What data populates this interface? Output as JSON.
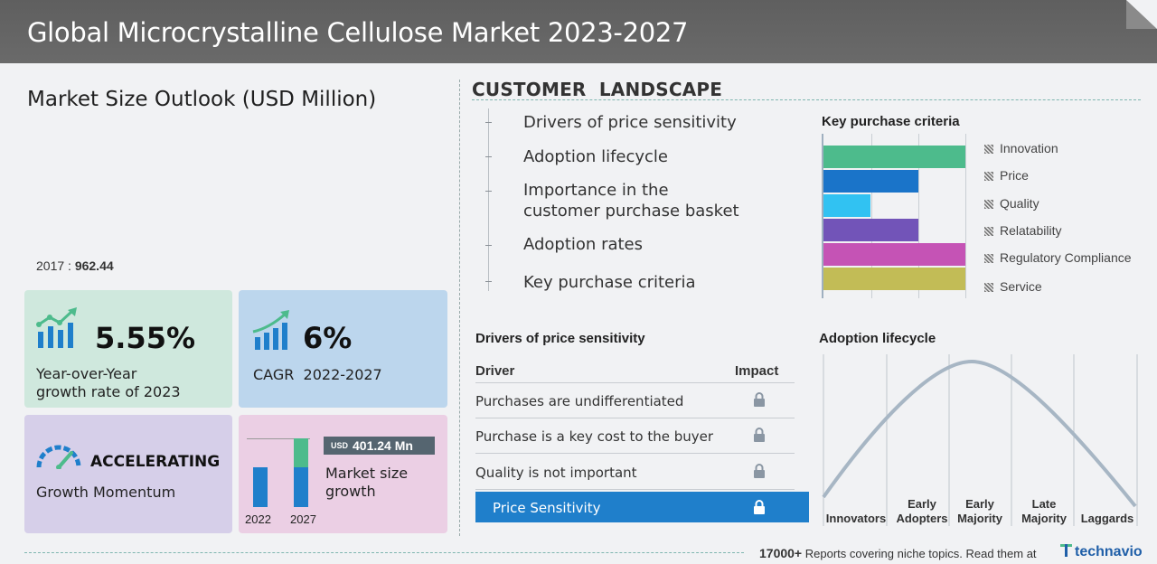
{
  "header": {
    "title": "Global Microcrystalline Cellulose Market 2023-2027"
  },
  "outlook": {
    "title": "Market Size Outlook (USD Million)",
    "base_year": "2017",
    "base_value": "962.44"
  },
  "cards": {
    "yoy": {
      "value": "5.55%",
      "label_line1": "Year-over-Year",
      "label_line2": "growth rate of 2023"
    },
    "cagr": {
      "value": "6%",
      "label": "CAGR  2022-2027"
    },
    "momentum": {
      "value": "ACCELERATING",
      "label": "Growth Momentum"
    },
    "growth": {
      "currency": "USD",
      "value": "401.24 Mn",
      "label_line1": "Market size",
      "label_line2": "growth",
      "year_start": "2022",
      "year_end": "2027"
    }
  },
  "customer_landscape": {
    "title": "CUSTOMER  LANDSCAPE",
    "items": [
      "Drivers of price sensitivity",
      "Adoption lifecycle",
      "Importance in the customer purchase basket",
      "Adoption rates",
      "Key purchase criteria"
    ]
  },
  "key_purchase_criteria": {
    "title": "Key purchase criteria",
    "bars": [
      {
        "label": "Innovation",
        "value": 3,
        "color": "#4dbb8c"
      },
      {
        "label": "Price",
        "value": 2,
        "color": "#1a74c9"
      },
      {
        "label": "Quality",
        "value": 1,
        "color": "#31c2f2"
      },
      {
        "label": "Relatability",
        "value": 2,
        "color": "#7254b8"
      },
      {
        "label": "Regulatory Compliance",
        "value": 3,
        "color": "#c553b5"
      },
      {
        "label": "Service",
        "value": 3,
        "color": "#c2bc56"
      }
    ],
    "max": 3
  },
  "drivers": {
    "title": "Drivers of price sensitivity",
    "col_driver": "Driver",
    "col_impact": "Impact",
    "rows": [
      "Purchases are undifferentiated",
      "Purchase is a key cost to the buyer",
      "Quality is not important"
    ],
    "highlight": "Price Sensitivity"
  },
  "adoption_lifecycle": {
    "title": "Adoption lifecycle",
    "stages": [
      {
        "line1": "",
        "line2": "Innovators"
      },
      {
        "line1": "Early",
        "line2": "Adopters"
      },
      {
        "line1": "Early",
        "line2": "Majority"
      },
      {
        "line1": "Late",
        "line2": "Majority"
      },
      {
        "line1": "",
        "line2": "Laggards"
      }
    ]
  },
  "footer": {
    "count": "17000+",
    "text": "Reports covering niche topics. Read them at",
    "brand": "technavio"
  },
  "colors": {
    "header_bg": "#626262",
    "accent_blue": "#1f7fcb",
    "accent_green": "#4dbb8c"
  }
}
